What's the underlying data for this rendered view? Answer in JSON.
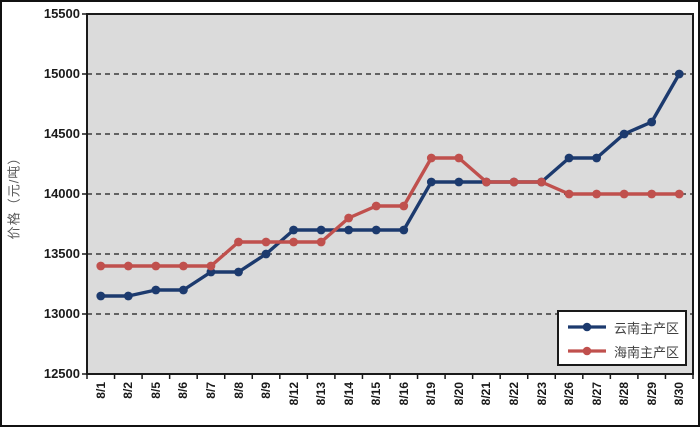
{
  "chart_data": {
    "type": "line",
    "title": "",
    "xlabel": "",
    "ylabel": "价格（元/吨）",
    "ylim": [
      12500,
      15500
    ],
    "y_tick_step": 500,
    "y_ticks": [
      15500,
      15000,
      14500,
      14000,
      13500,
      13000,
      12500
    ],
    "grid": "horizontal-dashed",
    "plot_bg_color": "#dbdbdb",
    "grid_color": "#1a1a1a",
    "legend_position": "inside-bottom-right",
    "categories": [
      "8/1",
      "8/2",
      "8/5",
      "8/6",
      "8/7",
      "8/8",
      "8/9",
      "8/12",
      "8/13",
      "8/14",
      "8/15",
      "8/16",
      "8/19",
      "8/20",
      "8/21",
      "8/22",
      "8/23",
      "8/26",
      "8/27",
      "8/28",
      "8/29",
      "8/30"
    ],
    "series": [
      {
        "name": "云南主产区",
        "color": "#1c3a6e",
        "marker": "circle",
        "values": [
          13150,
          13150,
          13200,
          13200,
          13350,
          13350,
          13500,
          13700,
          13700,
          13700,
          13700,
          13700,
          14100,
          14100,
          14100,
          14100,
          14100,
          14300,
          14300,
          14500,
          14600,
          15000
        ]
      },
      {
        "name": "海南主产区",
        "color": "#c0504d",
        "marker": "circle",
        "values": [
          13400,
          13400,
          13400,
          13400,
          13400,
          13600,
          13600,
          13600,
          13600,
          13800,
          13900,
          13900,
          14300,
          14300,
          14100,
          14100,
          14100,
          14000,
          14000,
          14000,
          14000,
          14000
        ]
      }
    ]
  }
}
